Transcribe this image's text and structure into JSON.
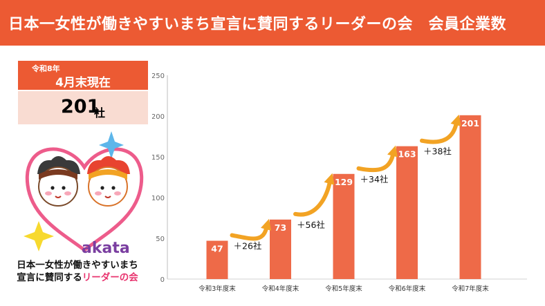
{
  "header": {
    "title": "日本一女性が働きやすいまち宣言に賛同するリーダーの会　会員企業数"
  },
  "summary": {
    "date_line1": "令和8年",
    "date_line2": "4月末現在",
    "count": "201",
    "count_unit": "社"
  },
  "logo": {
    "brand": "akata",
    "line1": "日本一女性が働きやすいまち",
    "line2_a": "宣言に賛同する",
    "line2_b": "リーダーの会"
  },
  "colors": {
    "accent": "#ec5a33",
    "bar": "#ee6a48",
    "arrow": "#f2a324",
    "count_bg": "#f9dcd2",
    "pink": "#e8336e"
  },
  "chart_data": {
    "type": "bar",
    "categories": [
      "令和3年度末",
      "令和4年度末",
      "令和5年度末",
      "令和6年度末",
      "令和7年度末"
    ],
    "values": [
      47,
      73,
      129,
      163,
      201
    ],
    "data_labels": [
      "47",
      "73",
      "129",
      "163",
      "201"
    ],
    "increase_labels": [
      "＋26社",
      "＋56社",
      "＋34社",
      "＋38社"
    ],
    "ylim": [
      0,
      250
    ],
    "yticks": [
      0,
      50,
      100,
      150,
      200,
      250
    ],
    "grid": false,
    "legend": "none"
  }
}
